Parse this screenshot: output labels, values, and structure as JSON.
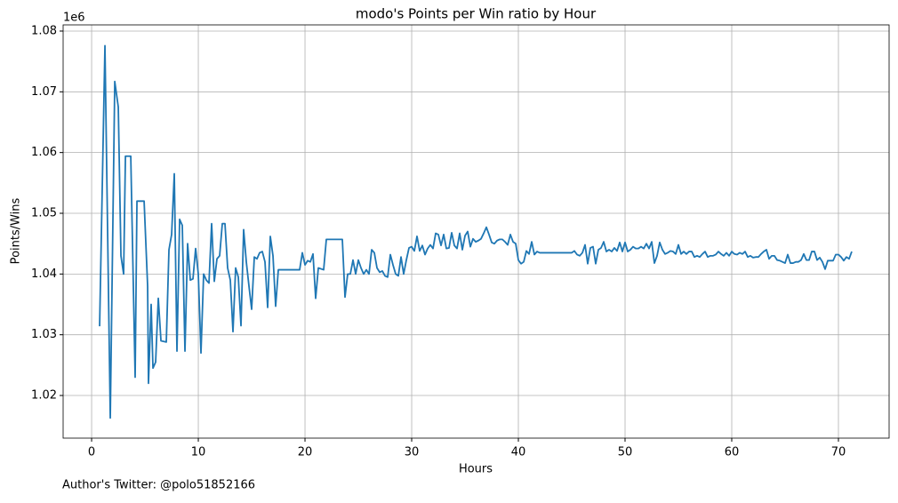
{
  "chart_data": {
    "type": "line",
    "title": "modo's Points per Win ratio by Hour",
    "x_label": "Hours",
    "y_label": "Points/Wins",
    "y_offset_label": "1e6",
    "footnote": "Author's Twitter: @polo51852166",
    "grid": true,
    "xlim": [
      -2.67,
      74.75
    ],
    "ylim": [
      1.01298,
      1.08102
    ],
    "xticks": [
      0,
      10,
      20,
      30,
      40,
      50,
      60,
      70
    ],
    "yticks": [
      1.02,
      1.03,
      1.04,
      1.05,
      1.06,
      1.07,
      1.08
    ],
    "x": [
      0.75,
      1.25,
      1.75,
      2.17,
      2.5,
      2.75,
      3,
      3.17,
      3.67,
      4.08,
      4.25,
      4.92,
      5.25,
      5.33,
      5.58,
      5.75,
      6,
      6.25,
      6.5,
      7,
      7.25,
      7.5,
      7.75,
      8,
      8.25,
      8.5,
      8.75,
      9,
      9.25,
      9.5,
      9.75,
      10,
      10.25,
      10.5,
      10.75,
      11,
      11.25,
      11.5,
      11.75,
      12,
      12.25,
      12.5,
      12.75,
      13,
      13.25,
      13.5,
      13.75,
      14,
      14.25,
      14.5,
      14.75,
      15,
      15.25,
      15.5,
      15.75,
      16,
      16.25,
      16.5,
      16.75,
      17,
      17.25,
      17.5,
      19.5,
      19.75,
      20,
      20.25,
      20.5,
      20.75,
      21,
      21.25,
      21.75,
      22,
      23.5,
      23.75,
      24,
      24.25,
      24.5,
      24.75,
      25,
      25.25,
      25.5,
      25.75,
      26,
      26.25,
      26.5,
      26.75,
      27,
      27.25,
      27.5,
      27.75,
      28,
      28.25,
      28.5,
      28.75,
      29,
      29.25,
      29.5,
      29.75,
      30,
      30.25,
      30.5,
      30.75,
      31,
      31.25,
      31.5,
      31.75,
      32,
      32.25,
      32.5,
      32.75,
      33,
      33.25,
      33.5,
      33.75,
      34,
      34.25,
      34.5,
      34.75,
      35,
      35.25,
      35.5,
      35.75,
      36,
      36.25,
      36.5,
      36.75,
      37,
      37.25,
      37.5,
      37.75,
      38,
      38.25,
      38.5,
      38.75,
      39,
      39.25,
      39.5,
      39.75,
      40,
      40.25,
      40.5,
      40.75,
      41,
      41.25,
      41.5,
      41.75,
      42,
      45,
      45.25,
      45.5,
      45.75,
      46,
      46.25,
      46.5,
      46.75,
      47,
      47.25,
      47.5,
      47.75,
      48,
      48.25,
      48.5,
      48.75,
      49,
      49.25,
      49.5,
      49.75,
      50,
      50.25,
      50.5,
      50.75,
      51,
      51.25,
      51.5,
      51.75,
      52,
      52.25,
      52.5,
      52.75,
      53,
      53.25,
      53.5,
      53.75,
      54,
      54.25,
      54.5,
      54.75,
      55,
      55.25,
      55.5,
      55.75,
      56,
      56.25,
      56.5,
      56.75,
      57,
      57.25,
      57.5,
      57.75,
      58,
      58.25,
      58.5,
      58.75,
      59,
      59.25,
      59.5,
      59.75,
      60,
      60.25,
      60.5,
      60.75,
      61,
      61.25,
      61.5,
      61.75,
      62,
      62.25,
      62.5,
      62.75,
      63,
      63.25,
      63.5,
      63.75,
      64,
      64.25,
      64.5,
      64.75,
      65,
      65.25,
      65.5,
      65.75,
      66,
      66.25,
      66.5,
      66.75,
      67,
      67.25,
      67.5,
      67.75,
      68,
      68.25,
      68.5,
      68.75,
      69,
      69.25,
      69.5,
      69.75,
      70,
      70.25,
      70.5,
      70.75,
      71,
      71.25
    ],
    "series": [
      {
        "name": "Points/Wins",
        "color": "#1f77b4",
        "values": [
          1.0314,
          1.0776,
          1.0163,
          1.0717,
          1.0675,
          1.043,
          1.04,
          1.0594,
          1.0594,
          1.023,
          1.052,
          1.052,
          1.038,
          1.022,
          1.035,
          1.0245,
          1.0255,
          1.036,
          1.029,
          1.0288,
          1.044,
          1.0465,
          1.0565,
          1.0273,
          1.049,
          1.048,
          1.0273,
          1.045,
          1.039,
          1.0392,
          1.0442,
          1.04,
          1.027,
          1.04,
          1.039,
          1.0385,
          1.0483,
          1.0388,
          1.0425,
          1.043,
          1.0483,
          1.0483,
          1.041,
          1.039,
          1.0305,
          1.041,
          1.0395,
          1.0315,
          1.0473,
          1.042,
          1.038,
          1.0342,
          1.0428,
          1.0425,
          1.0435,
          1.0437,
          1.042,
          1.0345,
          1.0462,
          1.043,
          1.0347,
          1.0407,
          1.0407,
          1.0435,
          1.0415,
          1.0422,
          1.042,
          1.0433,
          1.036,
          1.041,
          1.0407,
          1.0457,
          1.0457,
          1.0362,
          1.04,
          1.04,
          1.0423,
          1.04,
          1.0423,
          1.041,
          1.04,
          1.0407,
          1.04,
          1.044,
          1.0435,
          1.041,
          1.0403,
          1.0405,
          1.0397,
          1.0395,
          1.0432,
          1.0415,
          1.04,
          1.0397,
          1.0428,
          1.04,
          1.0423,
          1.0443,
          1.0445,
          1.0438,
          1.0462,
          1.0438,
          1.0447,
          1.0432,
          1.0442,
          1.0448,
          1.0442,
          1.0467,
          1.0465,
          1.0447,
          1.0465,
          1.0442,
          1.0443,
          1.0468,
          1.0447,
          1.0442,
          1.0467,
          1.044,
          1.0463,
          1.047,
          1.0445,
          1.0458,
          1.0453,
          1.0455,
          1.0458,
          1.0467,
          1.0477,
          1.0465,
          1.0452,
          1.045,
          1.0455,
          1.0457,
          1.0457,
          1.0453,
          1.0448,
          1.0465,
          1.0453,
          1.045,
          1.0423,
          1.0417,
          1.042,
          1.0438,
          1.0433,
          1.0453,
          1.0432,
          1.0437,
          1.0435,
          1.0435,
          1.0438,
          1.0432,
          1.043,
          1.0435,
          1.0448,
          1.0417,
          1.0443,
          1.0445,
          1.0417,
          1.044,
          1.0443,
          1.0453,
          1.0437,
          1.044,
          1.0437,
          1.0443,
          1.0438,
          1.0452,
          1.0437,
          1.0452,
          1.0437,
          1.044,
          1.0445,
          1.0442,
          1.0442,
          1.0445,
          1.0442,
          1.045,
          1.0442,
          1.0453,
          1.0418,
          1.043,
          1.0452,
          1.044,
          1.0433,
          1.0435,
          1.0438,
          1.0437,
          1.0433,
          1.0448,
          1.0433,
          1.0437,
          1.0433,
          1.0437,
          1.0437,
          1.0428,
          1.043,
          1.0428,
          1.0433,
          1.0437,
          1.0428,
          1.043,
          1.043,
          1.0432,
          1.0437,
          1.0433,
          1.043,
          1.0435,
          1.043,
          1.0437,
          1.0433,
          1.0432,
          1.0435,
          1.0433,
          1.0437,
          1.0428,
          1.043,
          1.0427,
          1.0428,
          1.0428,
          1.0433,
          1.0437,
          1.044,
          1.0425,
          1.043,
          1.043,
          1.0423,
          1.0422,
          1.042,
          1.0418,
          1.0432,
          1.0418,
          1.0418,
          1.042,
          1.042,
          1.0423,
          1.0433,
          1.0423,
          1.0423,
          1.0437,
          1.0437,
          1.0423,
          1.0427,
          1.042,
          1.0408,
          1.0422,
          1.0422,
          1.0422,
          1.0432,
          1.0432,
          1.0428,
          1.0422,
          1.0428,
          1.0425,
          1.0437
        ]
      }
    ]
  }
}
